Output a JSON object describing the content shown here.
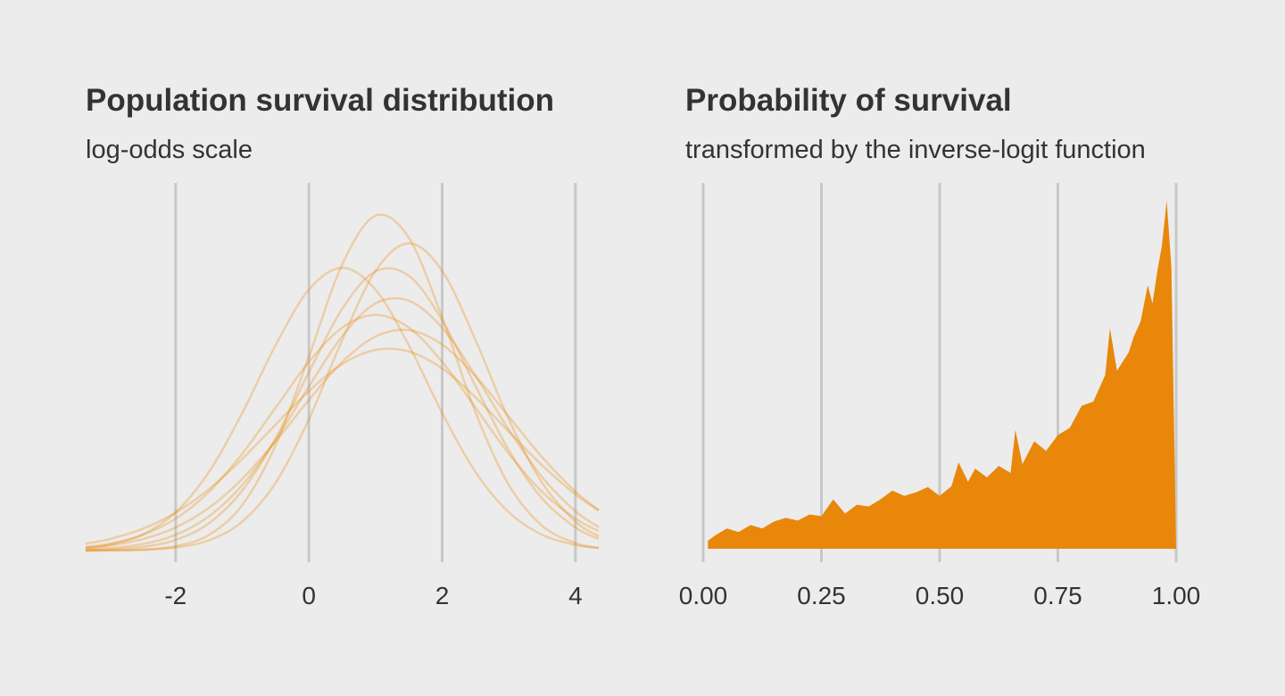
{
  "chart_data": [
    {
      "type": "line",
      "title": "Population survival distribution",
      "subtitle": "log-odds scale",
      "x": [
        -3.35,
        -3,
        -2.5,
        -2,
        -1.5,
        -1,
        -0.5,
        0,
        0.5,
        1,
        1.5,
        2,
        2.5,
        3,
        3.5,
        4,
        4.35
      ],
      "series": [
        {
          "color": "#e8870a",
          "values": [
            0.0,
            0.0002,
            0.0011,
            0.0049,
            0.0177,
            0.0514,
            0.119,
            0.219,
            0.323,
            0.378,
            0.353,
            0.263,
            0.156,
            0.074,
            0.028,
            0.0084,
            0.0032
          ]
        },
        {
          "color": "#e8870a",
          "values": [
            0.0011,
            0.0026,
            0.0072,
            0.0177,
            0.0386,
            0.0739,
            0.1247,
            0.1852,
            0.242,
            0.279,
            0.282,
            0.2515,
            0.1975,
            0.1364,
            0.0829,
            0.0444,
            0.0265
          ]
        },
        {
          "color": "#e8870a",
          "values": [
            0.0078,
            0.0128,
            0.0244,
            0.0428,
            0.0693,
            0.1035,
            0.1422,
            0.18,
            0.2105,
            0.2265,
            0.2246,
            0.2055,
            0.173,
            0.1343,
            0.0961,
            0.0634,
            0.0451
          ]
        },
        {
          "color": "#e8870a",
          "values": [
            0.0028,
            0.0063,
            0.0179,
            0.0432,
            0.0887,
            0.1553,
            0.2317,
            0.2945,
            0.3191,
            0.2945,
            0.2317,
            0.1553,
            0.0887,
            0.0432,
            0.0179,
            0.0063,
            0.0028
          ]
        },
        {
          "color": "#e8870a",
          "values": [
            0.0,
            0.0002,
            0.0008,
            0.0034,
            0.0116,
            0.0327,
            0.0765,
            0.1481,
            0.2377,
            0.3157,
            0.3469,
            0.3157,
            0.2377,
            0.1481,
            0.0765,
            0.0327,
            0.0161
          ]
        },
        {
          "color": "#e8870a",
          "values": [
            0.004,
            0.0076,
            0.0175,
            0.036,
            0.0663,
            0.1093,
            0.1613,
            0.213,
            0.2516,
            0.266,
            0.2516,
            0.213,
            0.1613,
            0.1093,
            0.0663,
            0.036,
            0.022
          ]
        },
        {
          "color": "#e8870a",
          "values": [
            0.0004,
            0.0011,
            0.004,
            0.012,
            0.0309,
            0.0678,
            0.1266,
            0.2013,
            0.2728,
            0.3151,
            0.3101,
            0.26,
            0.1857,
            0.1132,
            0.0587,
            0.026,
            0.0133
          ]
        },
        {
          "color": "#e8870a",
          "values": [
            0.003,
            0.0057,
            0.0128,
            0.0261,
            0.0482,
            0.0809,
            0.1232,
            0.17,
            0.2129,
            0.2416,
            0.2488,
            0.2324,
            0.1968,
            0.1512,
            0.1054,
            0.0666,
            0.0455
          ]
        }
      ],
      "xlim": [
        -3.35,
        4.35
      ],
      "xticks": [
        -2,
        0,
        2,
        4
      ],
      "ylim": [
        0,
        0.42
      ],
      "grid": true
    },
    {
      "type": "area",
      "title": "Probability of survival",
      "subtitle": "transformed by the inverse-logit function",
      "x": [
        0.01,
        0.025,
        0.05,
        0.075,
        0.1,
        0.125,
        0.15,
        0.175,
        0.2,
        0.225,
        0.25,
        0.275,
        0.3,
        0.325,
        0.35,
        0.375,
        0.4,
        0.425,
        0.45,
        0.475,
        0.5,
        0.525,
        0.54,
        0.56,
        0.575,
        0.6,
        0.625,
        0.65,
        0.66,
        0.675,
        0.7,
        0.725,
        0.75,
        0.775,
        0.8,
        0.825,
        0.85,
        0.86,
        0.875,
        0.9,
        0.91,
        0.925,
        0.94,
        0.95,
        0.96,
        0.97,
        0.98,
        0.99,
        1.0
      ],
      "values": [
        0.09,
        0.15,
        0.23,
        0.19,
        0.27,
        0.23,
        0.31,
        0.35,
        0.32,
        0.39,
        0.37,
        0.56,
        0.4,
        0.5,
        0.48,
        0.56,
        0.66,
        0.6,
        0.64,
        0.7,
        0.6,
        0.71,
        0.98,
        0.76,
        0.91,
        0.81,
        0.94,
        0.86,
        1.35,
        0.96,
        1.22,
        1.11,
        1.29,
        1.37,
        1.62,
        1.67,
        1.97,
        2.5,
        2.02,
        2.23,
        2.4,
        2.58,
        2.99,
        2.78,
        3.14,
        3.44,
        3.95,
        3.19,
        0
      ],
      "color": "#e8870a",
      "xlim": [
        0,
        1
      ],
      "xticks": [
        {
          "value": 0,
          "label": "0.00"
        },
        {
          "value": 0.25,
          "label": "0.25"
        },
        {
          "value": 0.5,
          "label": "0.50"
        },
        {
          "value": 0.75,
          "label": "0.75"
        },
        {
          "value": 1,
          "label": "1.00"
        }
      ],
      "ylim": [
        0,
        4.2
      ],
      "grid": true
    }
  ]
}
